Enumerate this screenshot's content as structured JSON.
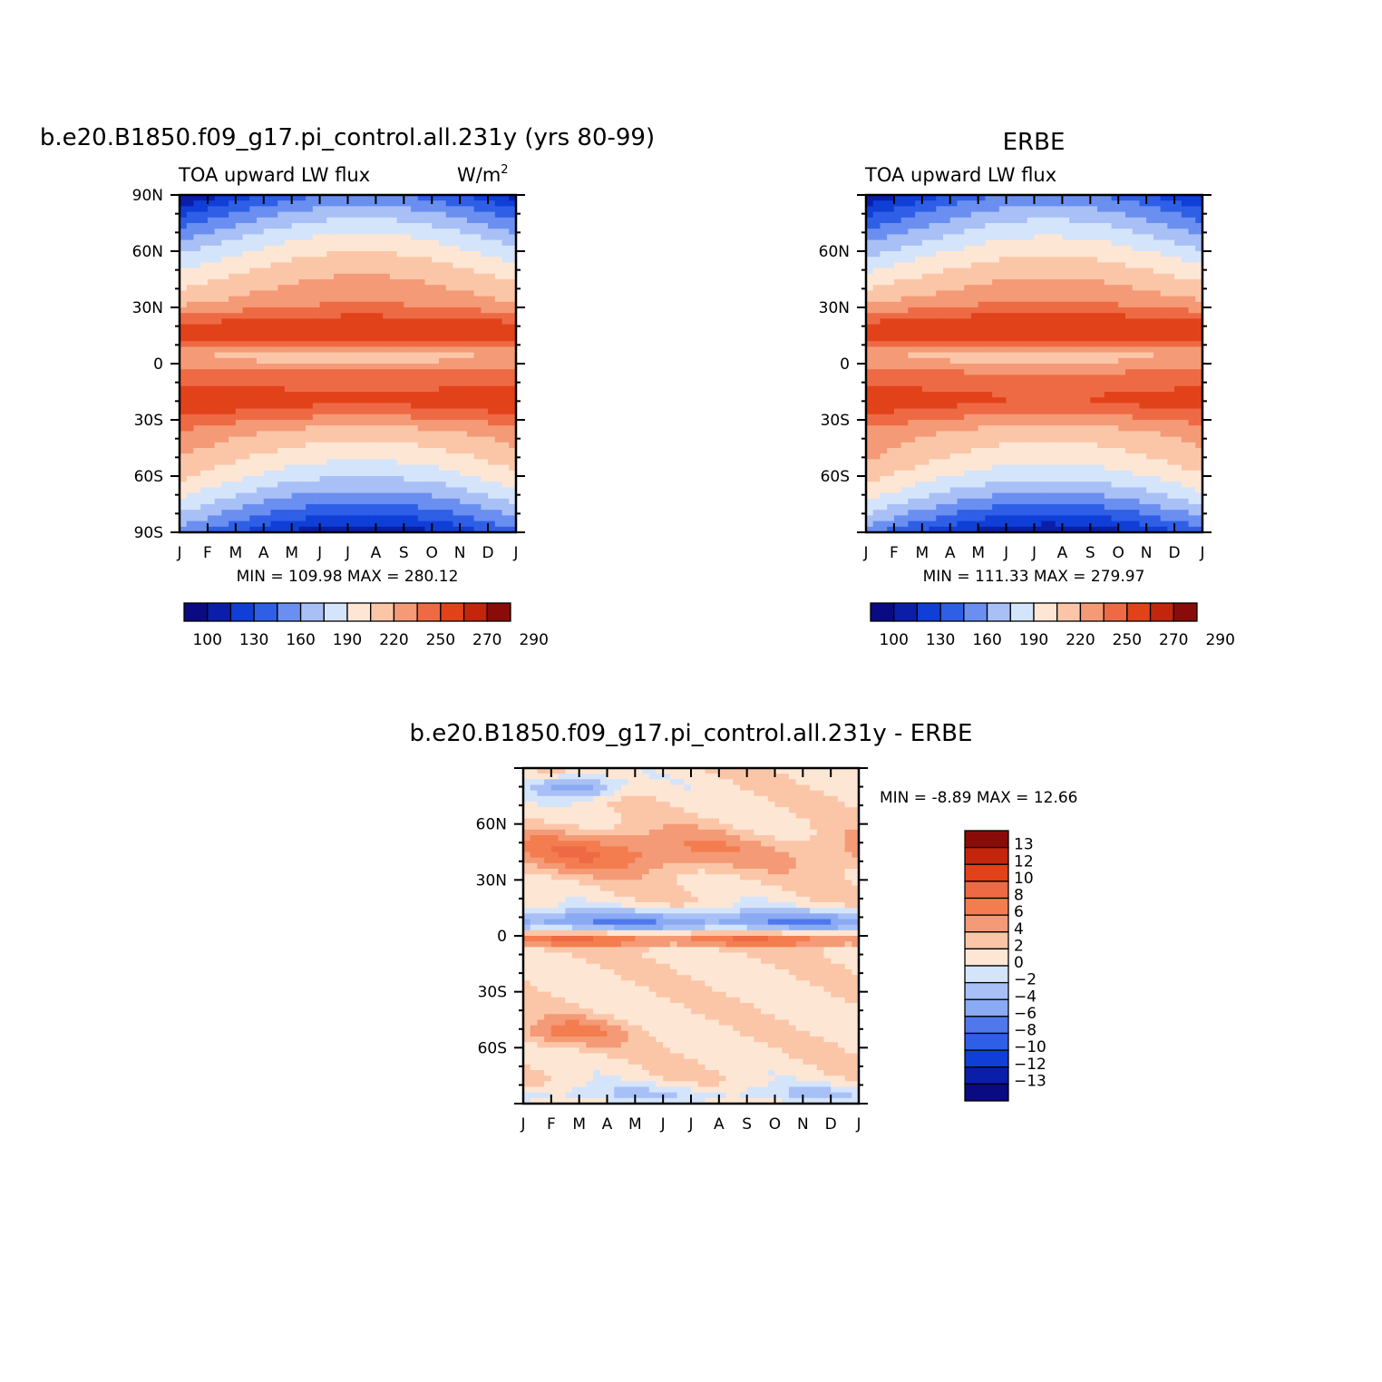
{
  "panels": [
    {
      "id": "model",
      "title": "b.e20.B1850.f09_g17.pi_control.all.231y (yrs 80-99)",
      "left_string": "TOA upward LW flux",
      "right_string_base": "W/m",
      "right_string_sup": "2",
      "ylabels": [
        "90N",
        "60N",
        "30N",
        "0",
        "30S",
        "60S",
        "90S"
      ],
      "xlabels": [
        "J",
        "F",
        "M",
        "A",
        "M",
        "J",
        "J",
        "A",
        "S",
        "O",
        "N",
        "D",
        "J"
      ],
      "min": "109.98",
      "max": "280.12",
      "stats_text": "MIN =  109.98  MAX =  280.12"
    },
    {
      "id": "obs",
      "title": "ERBE",
      "left_string": "TOA upward LW flux",
      "right_string_base": "",
      "right_string_sup": "",
      "ylabels": [
        "60N",
        "30N",
        "0",
        "30S",
        "60S"
      ],
      "xlabels": [
        "J",
        "F",
        "M",
        "A",
        "M",
        "J",
        "J",
        "A",
        "S",
        "O",
        "N",
        "D",
        "J"
      ],
      "min": "111.33",
      "max": "279.97",
      "stats_text": "MIN =  111.33  MAX =  279.97"
    },
    {
      "id": "diff",
      "title": "b.e20.B1850.f09_g17.pi_control.all.231y - ERBE",
      "ylabels": [
        "60N",
        "30N",
        "0",
        "30S",
        "60S"
      ],
      "xlabels": [
        "J",
        "F",
        "M",
        "A",
        "M",
        "J",
        "J",
        "A",
        "S",
        "O",
        "N",
        "D",
        "J"
      ],
      "min": "-8.89",
      "max": "12.66",
      "stats_text": "MIN =   -8.89  MAX =   12.66"
    }
  ],
  "colorbar_abs": {
    "labels": [
      "100",
      "130",
      "160",
      "190",
      "220",
      "250",
      "270",
      "290"
    ],
    "colors": [
      "#0a0a82",
      "#0a1eaa",
      "#0f3fd6",
      "#2e5fe6",
      "#6a8ff0",
      "#a8c0f6",
      "#d4e4fb",
      "#fde6d4",
      "#fbc6a8",
      "#f49a76",
      "#ee6a44",
      "#e2421a",
      "#c3260d",
      "#8a0c08"
    ]
  },
  "colorbar_diff": {
    "labels": [
      "13",
      "12",
      "10",
      "8",
      "6",
      "4",
      "2",
      "0",
      "−2",
      "−4",
      "−6",
      "−8",
      "−10",
      "−12",
      "−13"
    ],
    "colors": [
      "#8a0c08",
      "#c3260d",
      "#e2421a",
      "#ee6a44",
      "#f47d50",
      "#f49a76",
      "#fbc6a8",
      "#fde6d4",
      "#d4e4fb",
      "#a8c0f6",
      "#8aaaf3",
      "#4f78ec",
      "#2e5fe6",
      "#0f3fd6",
      "#0a1eaa",
      "#0a0a82"
    ]
  },
  "chart_data": [
    {
      "type": "heatmap",
      "title": "b.e20.B1850.f09_g17.pi_control.all.231y (yrs 80-99)",
      "variable": "TOA upward LW flux",
      "units": "W/m2",
      "x": [
        "J",
        "F",
        "M",
        "A",
        "M",
        "J",
        "J",
        "A",
        "S",
        "O",
        "N",
        "D",
        "J"
      ],
      "y_range": [
        -90,
        90
      ],
      "min": 109.98,
      "max": 280.12,
      "levels": [
        100,
        130,
        160,
        190,
        220,
        250,
        270,
        290
      ]
    },
    {
      "type": "heatmap",
      "title": "ERBE",
      "variable": "TOA upward LW flux",
      "x": [
        "J",
        "F",
        "M",
        "A",
        "M",
        "J",
        "J",
        "A",
        "S",
        "O",
        "N",
        "D",
        "J"
      ],
      "y_range": [
        -90,
        90
      ],
      "min": 111.33,
      "max": 279.97,
      "levels": [
        100,
        130,
        160,
        190,
        220,
        250,
        270,
        290
      ]
    },
    {
      "type": "heatmap",
      "title": "b.e20.B1850.f09_g17.pi_control.all.231y - ERBE",
      "x": [
        "J",
        "F",
        "M",
        "A",
        "M",
        "J",
        "J",
        "A",
        "S",
        "O",
        "N",
        "D",
        "J"
      ],
      "y_range": [
        -90,
        90
      ],
      "min": -8.89,
      "max": 12.66,
      "levels": [
        -13,
        -12,
        -10,
        -8,
        -6,
        -4,
        -2,
        0,
        2,
        4,
        6,
        8,
        10,
        12,
        13
      ]
    }
  ]
}
